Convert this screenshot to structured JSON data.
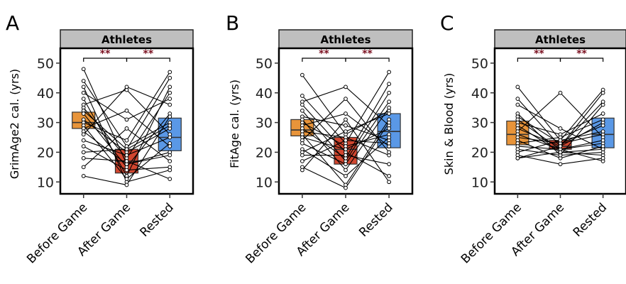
{
  "chart_data": [
    {
      "type": "box",
      "panel_label": "A",
      "title": "Athletes",
      "ylabel": "GrimAge2 cal. (yrs)",
      "categories": [
        "Before Game",
        "After Game",
        "Rested"
      ],
      "yticks": [
        10,
        20,
        30,
        40,
        50
      ],
      "ylim": [
        6,
        55
      ],
      "colors": [
        "#E8943A",
        "#D1462F",
        "#5A98E6"
      ],
      "boxes": [
        {
          "q1": 28,
          "median": 30,
          "q3": 33.5
        },
        {
          "q1": 13,
          "median": 17,
          "q3": 21
        },
        {
          "q1": 20.5,
          "median": 25,
          "q3": 31.5
        }
      ],
      "significance": [
        "**",
        "**"
      ],
      "subjects": [
        [
          48,
          16,
          20
        ],
        [
          44,
          22,
          30
        ],
        [
          42,
          10,
          14
        ],
        [
          40,
          31,
          38
        ],
        [
          38,
          12,
          42
        ],
        [
          36,
          41,
          26
        ],
        [
          35,
          18,
          40
        ],
        [
          34,
          21,
          45
        ],
        [
          33,
          15,
          33
        ],
        [
          31,
          20,
          28
        ],
        [
          30,
          24,
          47
        ],
        [
          29,
          11,
          23
        ],
        [
          28,
          34,
          22
        ],
        [
          27,
          16,
          19
        ],
        [
          26,
          42,
          36
        ],
        [
          24,
          19,
          25
        ],
        [
          22,
          14,
          15
        ],
        [
          20,
          21,
          29
        ],
        [
          18,
          17,
          11
        ],
        [
          15,
          28,
          17
        ],
        [
          12,
          9,
          32
        ]
      ]
    },
    {
      "type": "box",
      "panel_label": "B",
      "title": "Athletes",
      "ylabel": "FitAge cal. (yrs)",
      "categories": [
        "Before Game",
        "After Game",
        "Rested"
      ],
      "yticks": [
        10,
        20,
        30,
        40,
        50
      ],
      "ylim": [
        6,
        55
      ],
      "colors": [
        "#E8943A",
        "#D1462F",
        "#5A98E6"
      ],
      "boxes": [
        {
          "q1": 25.5,
          "median": 27.5,
          "q3": 31
        },
        {
          "q1": 16,
          "median": 21,
          "q3": 25
        },
        {
          "q1": 21.5,
          "median": 27,
          "q3": 33
        }
      ],
      "significance": [
        "**",
        "**"
      ],
      "subjects": [
        [
          46,
          26,
          34
        ],
        [
          39,
          23,
          47
        ],
        [
          37,
          42,
          29
        ],
        [
          36,
          20,
          12
        ],
        [
          34,
          17,
          40
        ],
        [
          32,
          29,
          24
        ],
        [
          31,
          14,
          35
        ],
        [
          30,
          22,
          26
        ],
        [
          29,
          33,
          22
        ],
        [
          28,
          18,
          43
        ],
        [
          27,
          25,
          19
        ],
        [
          26,
          9,
          31
        ],
        [
          25,
          21,
          28
        ],
        [
          24,
          38,
          20
        ],
        [
          23,
          16,
          37
        ],
        [
          21,
          12,
          25
        ],
        [
          20,
          27,
          33
        ],
        [
          19,
          19,
          16
        ],
        [
          17,
          24,
          23
        ],
        [
          15,
          8,
          30
        ],
        [
          14,
          31,
          10
        ]
      ]
    },
    {
      "type": "box",
      "panel_label": "C",
      "title": "Athletes",
      "ylabel": "Skin & Blood (yrs)",
      "categories": [
        "Before Game",
        "After Game",
        "Rested"
      ],
      "yticks": [
        10,
        20,
        30,
        40,
        50
      ],
      "ylim": [
        6,
        55
      ],
      "colors": [
        "#E8943A",
        "#D1462F",
        "#5A98E6"
      ],
      "boxes": [
        {
          "q1": 22.5,
          "median": 26,
          "q3": 30.5
        },
        {
          "q1": 21,
          "median": 22,
          "q3": 24
        },
        {
          "q1": 21.5,
          "median": 26,
          "q3": 31.5
        }
      ],
      "significance": [
        "**",
        "**"
      ],
      "subjects": [
        [
          42,
          24,
          41
        ],
        [
          38,
          22,
          30
        ],
        [
          36,
          28,
          21
        ],
        [
          33,
          19,
          36
        ],
        [
          32,
          23,
          26
        ],
        [
          31,
          21,
          23
        ],
        [
          30,
          26,
          33
        ],
        [
          29,
          20,
          19
        ],
        [
          28,
          22,
          40
        ],
        [
          27,
          40,
          25
        ],
        [
          26,
          21,
          17
        ],
        [
          25,
          23,
          29
        ],
        [
          24,
          18,
          22
        ],
        [
          23,
          25,
          31
        ],
        [
          22,
          21,
          24
        ],
        [
          21,
          19,
          20
        ],
        [
          20,
          24,
          27
        ],
        [
          19,
          16,
          18
        ],
        [
          18,
          22,
          37
        ],
        [
          18,
          20,
          21
        ]
      ]
    }
  ]
}
